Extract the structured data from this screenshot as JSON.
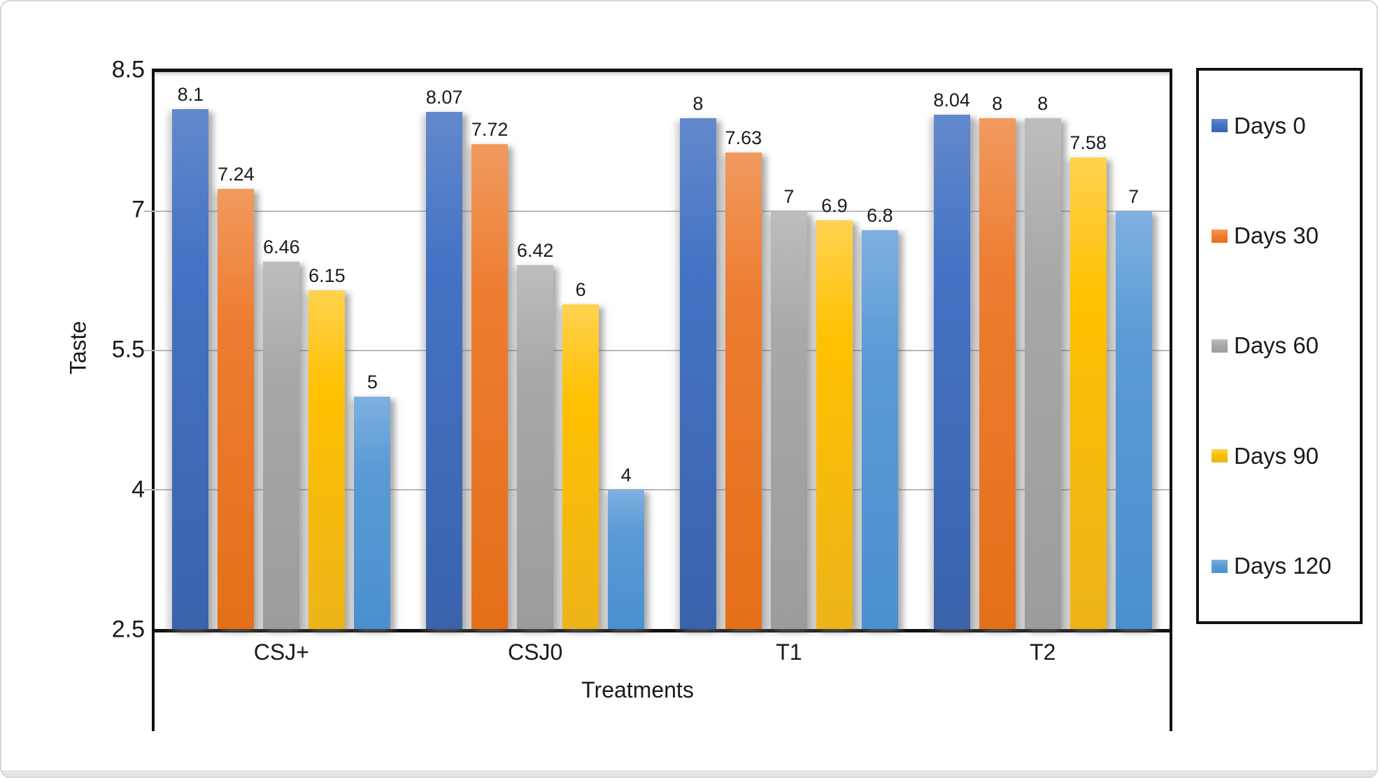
{
  "window": {
    "background": "#ffffff",
    "frame_border_color": "#d7d7d7",
    "bottom_strip_color": "#e4e4e6"
  },
  "chart_data": {
    "type": "bar",
    "title": "",
    "xlabel": "Treatments",
    "ylabel": "Taste",
    "categories": [
      "CSJ+",
      "CSJ0",
      "T1",
      "T2"
    ],
    "series": [
      {
        "name": "Days 0",
        "color": "#4472c4",
        "color_top": "#6389cc",
        "color_bottom": "#3b63ac",
        "values": [
          8.1,
          8.07,
          8,
          8.04
        ]
      },
      {
        "name": "Days 30",
        "color": "#ed7d31",
        "color_top": "#f19a5f",
        "color_bottom": "#e56f19",
        "values": [
          7.24,
          7.72,
          7.63,
          8
        ]
      },
      {
        "name": "Days 60",
        "color": "#a8a8a8",
        "color_top": "#bdbdbd",
        "color_bottom": "#9c9c9c",
        "values": [
          6.46,
          6.42,
          7,
          8
        ]
      },
      {
        "name": "Days 90",
        "color": "#ffc000",
        "color_top": "#ffd24f",
        "color_bottom": "#edb41a",
        "values": [
          6.15,
          6,
          6.9,
          7.58
        ]
      },
      {
        "name": "Days 120",
        "color": "#5b9bd5",
        "color_top": "#7fb0e0",
        "color_bottom": "#4a90cf",
        "values": [
          5,
          4,
          6.8,
          7
        ]
      }
    ],
    "ylim": [
      2.5,
      8.5
    ],
    "y_ticks": [
      8.5,
      7,
      5.5,
      4,
      2.5
    ],
    "gridlines": [
      7,
      5.5,
      4
    ],
    "grid": true,
    "legend_position": "right",
    "axis_color": "#111111",
    "gridline_color": "#b8b8b8"
  }
}
